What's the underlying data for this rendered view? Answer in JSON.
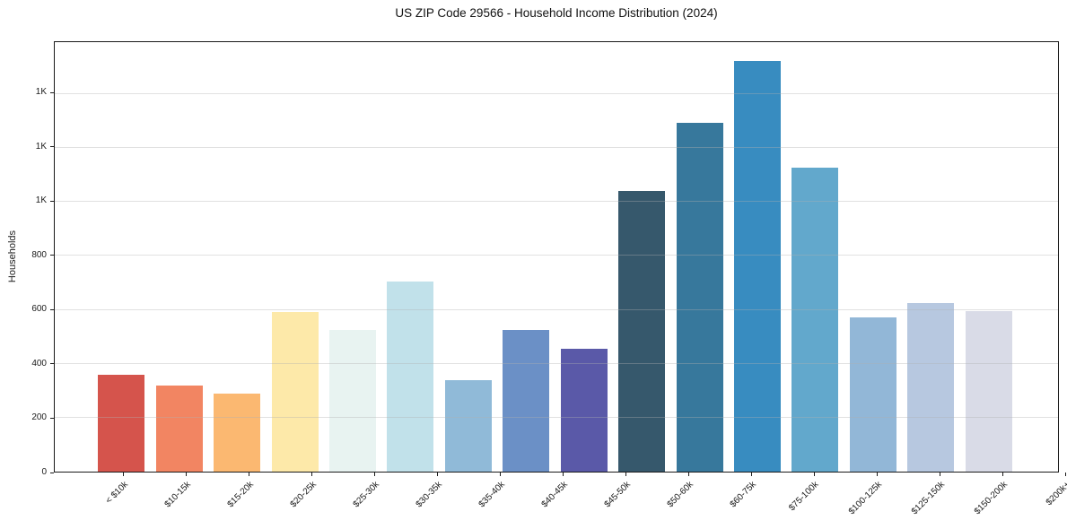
{
  "chart_data": {
    "type": "bar",
    "title": "US ZIP Code 29566 - Household Income Distribution (2024)",
    "xlabel": "",
    "ylabel": "Households",
    "categories": [
      "< $10k",
      "$10-15k",
      "$15-20k",
      "$20-25k",
      "$25-30k",
      "$30-35k",
      "$35-40k",
      "$40-45k",
      "$45-50k",
      "$50-60k",
      "$60-75k",
      "$75-100k",
      "$100-125k",
      "$125-150k",
      "$150-200k",
      "$200k+"
    ],
    "values": [
      360,
      320,
      290,
      590,
      525,
      705,
      340,
      525,
      455,
      1040,
      1290,
      1520,
      1125,
      570,
      625,
      595
    ],
    "bar_colors": [
      "#d5544c",
      "#f28562",
      "#fbb871",
      "#fde9a9",
      "#e8f3f1",
      "#c1e1ea",
      "#90bad8",
      "#6b90c6",
      "#5a59a8",
      "#36586c",
      "#37789c",
      "#388cc0",
      "#62a8cc",
      "#92b7d7",
      "#b7c8e0",
      "#d9dbe7"
    ],
    "ylim": [
      0,
      1590
    ],
    "yticks": {
      "values": [
        0,
        200,
        400,
        600,
        800,
        1000,
        1200,
        1400
      ],
      "labels": [
        "0",
        "200",
        "400",
        "600",
        "800",
        "1K",
        "1K",
        "1K"
      ]
    },
    "grid": "horizontal",
    "legend": "none",
    "background_color": "#ffffff",
    "spine_color": "#1a1a1a",
    "grid_color": "#b0b0b0"
  }
}
